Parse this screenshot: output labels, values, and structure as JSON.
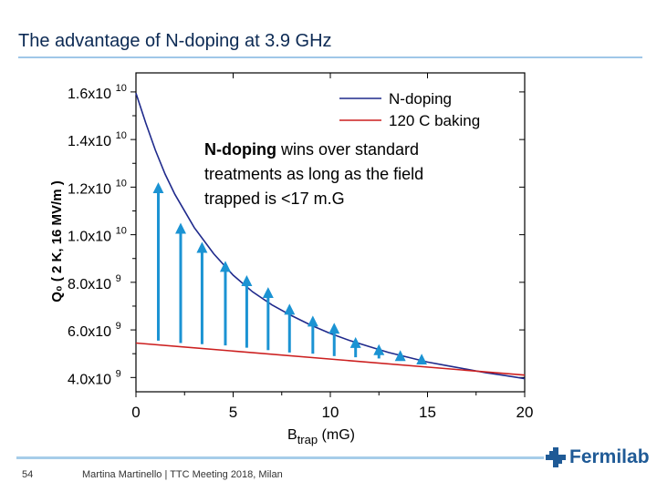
{
  "slide": {
    "title": "The advantage of N-doping at 3.9 GHz",
    "page_number": "54",
    "footer": "Martina Martinello | TTC Meeting 2018, Milan",
    "logo_text": "Fermilab"
  },
  "chart_data": {
    "type": "line",
    "xlabel_main": "B",
    "xlabel_sub": "trap",
    "xlabel_unit": " (mG)",
    "ylabel": "Q₀ ( 2 K, 16 MV/m )",
    "xlim": [
      0,
      20
    ],
    "ylim": [
      3400000000,
      16800000000
    ],
    "x_ticks": [
      "0",
      "5",
      "10",
      "15",
      "20"
    ],
    "y_ticks": [
      {
        "value": 4000000000,
        "mant": "4.0x10",
        "exp": "9"
      },
      {
        "value": 6000000000,
        "mant": "6.0x10",
        "exp": "9"
      },
      {
        "value": 8000000000,
        "mant": "8.0x10",
        "exp": "9"
      },
      {
        "value": 10000000000,
        "mant": "1.0x10",
        "exp": "10"
      },
      {
        "value": 12000000000,
        "mant": "1.2x10",
        "exp": "10"
      },
      {
        "value": 14000000000,
        "mant": "1.4x10",
        "exp": "10"
      },
      {
        "value": 16000000000,
        "mant": "1.6x10",
        "exp": "10"
      }
    ],
    "series": [
      {
        "name": "N-doping",
        "color": "#1f2a8c",
        "x": [
          0,
          0.5,
          1,
          1.5,
          2,
          3,
          4,
          5,
          6,
          7,
          8,
          9,
          10,
          11,
          12,
          13,
          14,
          15,
          16,
          17,
          18,
          19,
          20
        ],
        "y": [
          15950000000,
          14700000000,
          13550000000,
          12550000000,
          11700000000,
          10300000000,
          9200000000,
          8300000000,
          7600000000,
          7050000000,
          6600000000,
          6200000000,
          5850000000,
          5550000000,
          5300000000,
          5050000000,
          4850000000,
          4650000000,
          4500000000,
          4350000000,
          4200000000,
          4080000000,
          3950000000
        ]
      },
      {
        "name": "120 C baking",
        "color": "#cc1f1f",
        "x": [
          0,
          20
        ],
        "y": [
          5450000000,
          4100000000
        ]
      }
    ],
    "arrows": {
      "color": "#1b93d3",
      "items": [
        {
          "x": 1.15,
          "y_from": 5550000000,
          "y_to": 12200000000
        },
        {
          "x": 2.3,
          "y_from": 5450000000,
          "y_to": 10500000000
        },
        {
          "x": 3.4,
          "y_from": 5400000000,
          "y_to": 9700000000
        },
        {
          "x": 4.6,
          "y_from": 5350000000,
          "y_to": 8900000000
        },
        {
          "x": 5.7,
          "y_from": 5250000000,
          "y_to": 8300000000
        },
        {
          "x": 6.8,
          "y_from": 5150000000,
          "y_to": 7800000000
        },
        {
          "x": 7.9,
          "y_from": 5050000000,
          "y_to": 7100000000
        },
        {
          "x": 9.1,
          "y_from": 5000000000,
          "y_to": 6600000000
        },
        {
          "x": 10.2,
          "y_from": 4900000000,
          "y_to": 6300000000
        },
        {
          "x": 11.3,
          "y_from": 4850000000,
          "y_to": 5700000000
        },
        {
          "x": 12.5,
          "y_from": 4800000000,
          "y_to": 5400000000
        },
        {
          "x": 13.6,
          "y_from": 4700000000,
          "y_to": 5150000000
        },
        {
          "x": 14.7,
          "y_from": 4650000000,
          "y_to": 5000000000
        }
      ]
    },
    "annotation": {
      "bold": "N-doping",
      "rest": " wins over standard",
      "line2": "treatments as long as the field",
      "line3": "trapped is <17 m.G"
    },
    "legend_placement": "top-right",
    "grid": false
  }
}
